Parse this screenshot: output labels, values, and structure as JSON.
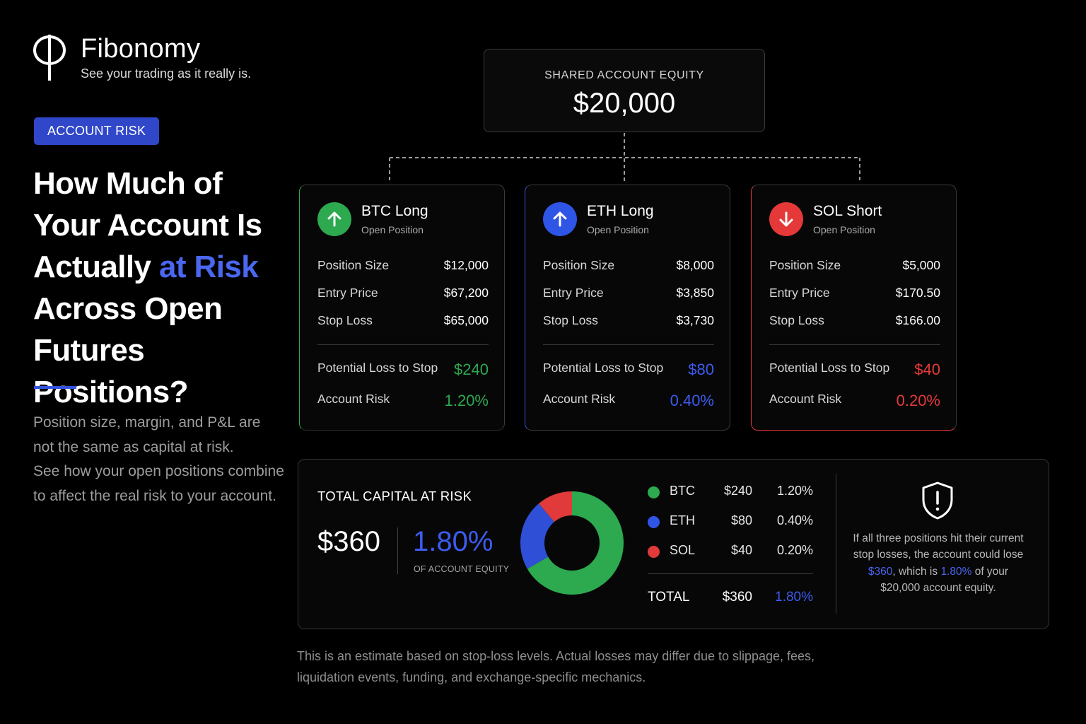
{
  "brand": {
    "name": "Fibonomy",
    "tagline": "See your trading as it really is."
  },
  "badge": "ACCOUNT RISK",
  "headline": {
    "line1": "How Much of",
    "line2": "Your Account Is",
    "line3_pre": "Actually ",
    "line3_highlight": "at Risk",
    "line4": "Across Open",
    "line5": "Futures Positions?"
  },
  "description": {
    "line1": "Position size, margin, and P&L are",
    "line2": "not the same as capital at risk.",
    "line3": "See how your open positions combine",
    "line4": "to affect the real risk to your account."
  },
  "equity": {
    "label": "SHARED ACCOUNT EQUITY",
    "value": "$20,000"
  },
  "positions": [
    {
      "title": "BTC Long",
      "subtitle": "Open Position",
      "color": "#2da94f",
      "direction": "up",
      "rows": [
        {
          "label": "Position Size",
          "value": "$12,000"
        },
        {
          "label": "Entry Price",
          "value": "$67,200"
        },
        {
          "label": "Stop Loss",
          "value": "$65,000"
        }
      ],
      "loss_label": "Potential Loss to Stop",
      "loss_value": "$240",
      "risk_label": "Account Risk",
      "risk_value": "1.20%"
    },
    {
      "title": "ETH Long",
      "subtitle": "Open Position",
      "color": "#2f55e6",
      "direction": "up",
      "rows": [
        {
          "label": "Position Size",
          "value": "$8,000"
        },
        {
          "label": "Entry Price",
          "value": "$3,850"
        },
        {
          "label": "Stop Loss",
          "value": "$3,730"
        }
      ],
      "loss_label": "Potential Loss to Stop",
      "loss_value": "$80",
      "risk_label": "Account Risk",
      "risk_value": "0.40%"
    },
    {
      "title": "SOL Short",
      "subtitle": "Open Position",
      "color": "#e53939",
      "direction": "down",
      "rows": [
        {
          "label": "Position Size",
          "value": "$5,000"
        },
        {
          "label": "Entry Price",
          "value": "$170.50"
        },
        {
          "label": "Stop Loss",
          "value": "$166.00"
        }
      ],
      "loss_label": "Potential Loss to Stop",
      "loss_value": "$40",
      "risk_label": "Account Risk",
      "risk_value": "0.20%"
    }
  ],
  "summary": {
    "label": "TOTAL CAPITAL AT RISK",
    "total": "$360",
    "pct": "1.80%",
    "pct_label": "OF ACCOUNT EQUITY",
    "breakdown": [
      {
        "name": "BTC",
        "amount": "$240",
        "pct": "1.20%",
        "color": "#2da94f",
        "value": 240
      },
      {
        "name": "ETH",
        "amount": "$80",
        "pct": "0.40%",
        "color": "#2f4fd6",
        "value": 80
      },
      {
        "name": "SOL",
        "amount": "$40",
        "pct": "0.20%",
        "color": "#e03a3a",
        "value": 40
      }
    ],
    "total_row": {
      "name": "TOTAL",
      "amount": "$360",
      "pct": "1.80%"
    },
    "note": {
      "part1": "If all three positions hit their current stop losses, the account could lose ",
      "amount": "$360",
      "part2": ", which is ",
      "pct": "1.80%",
      "part3": " of your $20,000 account equity."
    }
  },
  "footer": {
    "line1": "This is an estimate based on stop-loss levels. Actual losses may differ due to slippage, fees,",
    "line2": "liquidation events, funding, and exchange-specific mechanics."
  },
  "colors": {
    "accent": "#3c5cf0",
    "green": "#2da94f",
    "blue": "#2f55e6",
    "red": "#e53939"
  }
}
